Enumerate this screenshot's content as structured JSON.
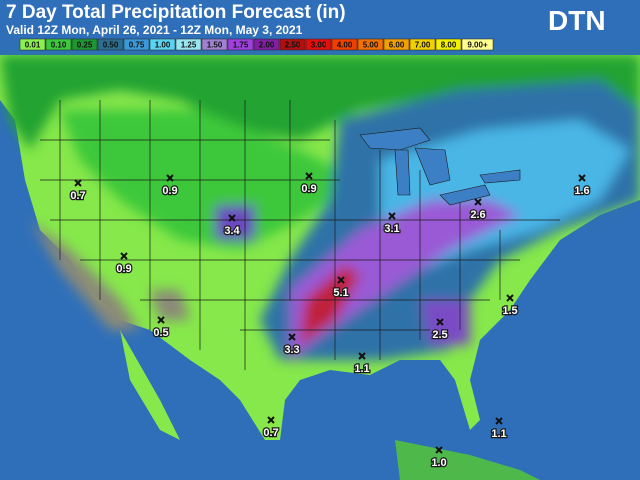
{
  "header": {
    "title": "7 Day Total Precipitation Forecast (in)",
    "subtitle": "Valid 12Z Mon, April 26, 2021 - 12Z Mon, May 3, 2021",
    "logo": "DTN"
  },
  "legend": [
    {
      "label": "0.01",
      "color": "#8cf050"
    },
    {
      "label": "0.10",
      "color": "#3cc83c"
    },
    {
      "label": "0.25",
      "color": "#1e9632"
    },
    {
      "label": "0.50",
      "color": "#2b6e8f"
    },
    {
      "label": "0.75",
      "color": "#3a9ad9"
    },
    {
      "label": "1.00",
      "color": "#5ad2f0"
    },
    {
      "label": "1.25",
      "color": "#9ae6f0"
    },
    {
      "label": "1.50",
      "color": "#a080d0"
    },
    {
      "label": "1.75",
      "color": "#a040e0"
    },
    {
      "label": "2.00",
      "color": "#8020a0"
    },
    {
      "label": "2.50",
      "color": "#b01010"
    },
    {
      "label": "3.00",
      "color": "#e01010"
    },
    {
      "label": "4.00",
      "color": "#f04000"
    },
    {
      "label": "5.00",
      "color": "#f07000"
    },
    {
      "label": "6.00",
      "color": "#f0a000"
    },
    {
      "label": "7.00",
      "color": "#f0d000"
    },
    {
      "label": "8.00",
      "color": "#f0f000"
    },
    {
      "label": "9.00+",
      "color": "#ffff90"
    }
  ],
  "points": [
    {
      "label": "0.7"
    },
    {
      "label": "0.9"
    },
    {
      "label": "0.9"
    },
    {
      "label": "3.4"
    },
    {
      "label": "3.1"
    },
    {
      "label": "2.6"
    },
    {
      "label": "1.6"
    },
    {
      "label": "0.9"
    },
    {
      "label": "5.1"
    },
    {
      "label": "1.5"
    },
    {
      "label": "0.5"
    },
    {
      "label": "2.5"
    },
    {
      "label": "3.3"
    },
    {
      "label": "1.1"
    },
    {
      "label": "0.7"
    },
    {
      "label": "1.1"
    },
    {
      "label": "1.0"
    }
  ]
}
